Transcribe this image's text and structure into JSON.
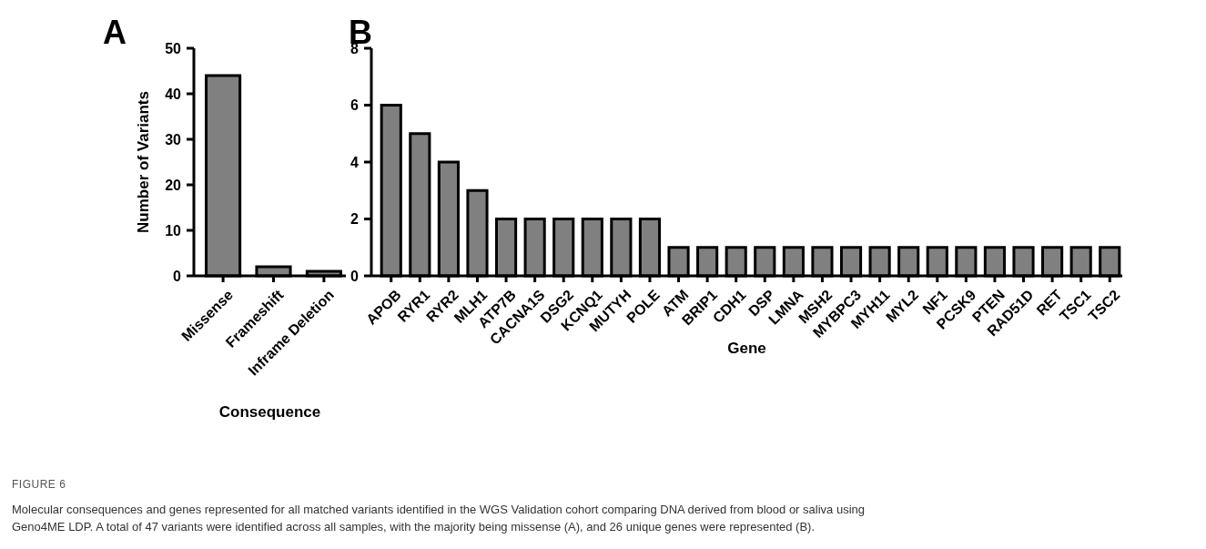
{
  "chart_data": [
    {
      "type": "bar",
      "title": "A",
      "categories": [
        "Missense",
        "Frameshift",
        "Inframe Deletion"
      ],
      "values": [
        44,
        2,
        1
      ],
      "color": "#808080",
      "xlabel": "Consequence",
      "ylabel": "Number of Variants",
      "ylim": [
        0,
        50
      ],
      "yticks": [
        0,
        10,
        20,
        30,
        40,
        50
      ],
      "annotations": [
        "FIGURE 6",
        "Molecular consequences and genes represented for all matched variants identified in the WGS Validation cohort comparing DNA derived from blood or saliva using Geno4ME LDP. A total of 47 variants were identified across all samples, with the majority being missense (A), and 26 unique genes were represented (B)."
      ]
    },
    {
      "type": "bar",
      "title": "B",
      "categories": [
        "APOB",
        "RYR1",
        "RYR2",
        "MLH1",
        "ATP7B",
        "CACNA1S",
        "DSG2",
        "KCNQ1",
        "MUTYH",
        "POLE",
        "ATM",
        "BRIP1",
        "CDH1",
        "DSP",
        "LMNA",
        "MSH2",
        "MYBPC3",
        "MYH11",
        "MYL2",
        "NF1",
        "PCSK9",
        "PTEN",
        "RAD51D",
        "RET",
        "TSC1",
        "TSC2"
      ],
      "values": [
        6,
        5,
        4,
        3,
        2,
        2,
        2,
        2,
        2,
        2,
        1,
        1,
        1,
        1,
        1,
        1,
        1,
        1,
        1,
        1,
        1,
        1,
        1,
        1,
        1,
        1
      ],
      "color": "#808080",
      "xlabel": "Gene",
      "ylim": [
        0,
        8
      ],
      "yticks": [
        0,
        2,
        4,
        6,
        8
      ]
    }
  ]
}
